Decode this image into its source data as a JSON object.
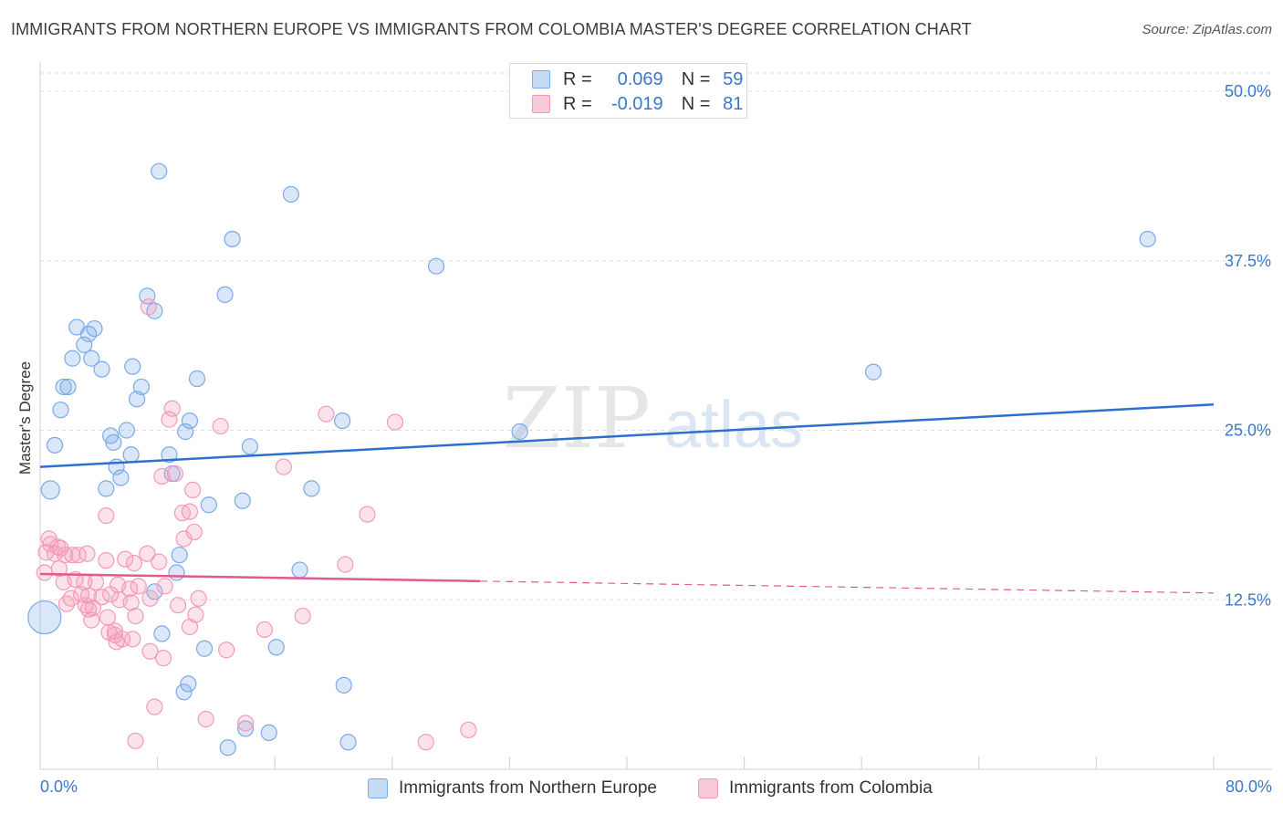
{
  "chart_data": {
    "type": "scatter",
    "title": "IMMIGRANTS FROM NORTHERN EUROPE VS IMMIGRANTS FROM COLOMBIA MASTER'S DEGREE CORRELATION CHART",
    "source": "Source: ZipAtlas.com",
    "xlabel": "",
    "ylabel": "Master's Degree",
    "xlim": [
      0,
      80
    ],
    "ylim": [
      0,
      50
    ],
    "x_tick_labels": {
      "min": "0.0%",
      "max": "80.0%"
    },
    "y_ticks": [
      {
        "value": 12.5,
        "label": "12.5%"
      },
      {
        "value": 25.0,
        "label": "25.0%"
      },
      {
        "value": 37.5,
        "label": "37.5%"
      },
      {
        "value": 50.0,
        "label": "50.0%"
      }
    ],
    "watermark": {
      "part1": "ZIP",
      "part2": "atlas"
    },
    "legend_stats": [
      {
        "r_label": "R =",
        "r_value": "0.069",
        "n_label": "N =",
        "n_value": "59"
      },
      {
        "r_label": "R =",
        "r_value": "-0.019",
        "n_label": "N =",
        "n_value": "81"
      }
    ],
    "series": [
      {
        "name": "Immigrants from Northern Europe",
        "color": "#7aaae8",
        "line_color": "#2d6fcc",
        "trend": {
          "x": [
            0,
            80
          ],
          "y": [
            22.3,
            26.9
          ],
          "dashed_from": null
        },
        "points": [
          [
            8.1,
            44.1
          ],
          [
            17.1,
            42.4
          ],
          [
            13.1,
            39.1
          ],
          [
            75.5,
            39.1
          ],
          [
            27.0,
            37.1
          ],
          [
            7.3,
            34.9
          ],
          [
            12.6,
            35.0
          ],
          [
            7.8,
            33.8
          ],
          [
            2.5,
            32.6
          ],
          [
            3.7,
            32.5
          ],
          [
            3.3,
            32.1
          ],
          [
            3.0,
            31.3
          ],
          [
            2.2,
            30.3
          ],
          [
            3.5,
            30.3
          ],
          [
            4.2,
            29.5
          ],
          [
            6.3,
            29.7
          ],
          [
            56.8,
            29.3
          ],
          [
            10.7,
            28.8
          ],
          [
            1.6,
            28.2
          ],
          [
            1.9,
            28.2
          ],
          [
            6.9,
            28.2
          ],
          [
            6.6,
            27.3
          ],
          [
            1.4,
            26.5
          ],
          [
            10.2,
            25.7
          ],
          [
            20.6,
            25.7
          ],
          [
            5.9,
            25.0
          ],
          [
            9.9,
            24.9
          ],
          [
            32.7,
            24.9
          ],
          [
            4.8,
            24.6
          ],
          [
            5.0,
            24.1
          ],
          [
            1.0,
            23.9
          ],
          [
            14.3,
            23.8
          ],
          [
            6.2,
            23.2
          ],
          [
            8.8,
            23.2
          ],
          [
            5.2,
            22.3
          ],
          [
            9.0,
            21.8
          ],
          [
            5.5,
            21.5
          ],
          [
            0.7,
            20.6
          ],
          [
            4.5,
            20.7
          ],
          [
            18.5,
            20.7
          ],
          [
            13.8,
            19.8
          ],
          [
            11.5,
            19.5
          ],
          [
            9.5,
            15.8
          ],
          [
            17.7,
            14.7
          ],
          [
            9.3,
            14.5
          ],
          [
            7.8,
            13.1
          ],
          [
            8.3,
            10.0
          ],
          [
            0.3,
            11.2
          ],
          [
            11.2,
            8.9
          ],
          [
            16.1,
            9.0
          ],
          [
            10.1,
            6.3
          ],
          [
            20.7,
            6.2
          ],
          [
            9.8,
            5.7
          ],
          [
            14.0,
            3.0
          ],
          [
            15.6,
            2.7
          ],
          [
            21.0,
            2.0
          ],
          [
            12.8,
            1.6
          ]
        ]
      },
      {
        "name": "Immigrants from Colombia",
        "color": "#f49ab8",
        "line_color": "#e0598f",
        "trend": {
          "x": [
            0,
            80
          ],
          "y": [
            14.4,
            13.0
          ],
          "dashed_from": 30
        },
        "points": [
          [
            7.4,
            34.1
          ],
          [
            19.5,
            26.2
          ],
          [
            24.2,
            25.6
          ],
          [
            9.0,
            26.6
          ],
          [
            8.8,
            25.8
          ],
          [
            12.3,
            25.3
          ],
          [
            16.6,
            22.3
          ],
          [
            8.3,
            21.6
          ],
          [
            9.2,
            21.8
          ],
          [
            10.4,
            20.6
          ],
          [
            4.5,
            18.7
          ],
          [
            9.7,
            18.9
          ],
          [
            10.2,
            19.0
          ],
          [
            22.3,
            18.8
          ],
          [
            10.5,
            17.5
          ],
          [
            0.6,
            17.0
          ],
          [
            0.7,
            16.6
          ],
          [
            1.2,
            16.4
          ],
          [
            1.4,
            16.3
          ],
          [
            0.4,
            16.0
          ],
          [
            9.8,
            17.0
          ],
          [
            1.0,
            15.9
          ],
          [
            1.7,
            15.8
          ],
          [
            2.2,
            15.8
          ],
          [
            2.6,
            15.8
          ],
          [
            3.2,
            15.9
          ],
          [
            7.3,
            15.9
          ],
          [
            4.5,
            15.4
          ],
          [
            5.8,
            15.5
          ],
          [
            6.4,
            15.2
          ],
          [
            8.1,
            15.3
          ],
          [
            20.8,
            15.1
          ],
          [
            0.3,
            14.5
          ],
          [
            1.3,
            14.8
          ],
          [
            1.6,
            13.8
          ],
          [
            2.4,
            14.0
          ],
          [
            3.0,
            13.8
          ],
          [
            3.8,
            13.8
          ],
          [
            5.3,
            13.6
          ],
          [
            6.1,
            13.3
          ],
          [
            6.7,
            13.5
          ],
          [
            2.8,
            12.9
          ],
          [
            4.2,
            12.7
          ],
          [
            5.4,
            12.5
          ],
          [
            3.3,
            12.8
          ],
          [
            4.8,
            12.9
          ],
          [
            7.5,
            12.6
          ],
          [
            8.5,
            13.5
          ],
          [
            10.8,
            12.6
          ],
          [
            1.8,
            12.2
          ],
          [
            2.1,
            12.6
          ],
          [
            3.1,
            12.1
          ],
          [
            6.2,
            12.3
          ],
          [
            9.4,
            12.1
          ],
          [
            3.3,
            11.8
          ],
          [
            3.6,
            11.9
          ],
          [
            4.6,
            11.2
          ],
          [
            10.6,
            11.4
          ],
          [
            17.9,
            11.3
          ],
          [
            3.5,
            11.0
          ],
          [
            6.5,
            11.3
          ],
          [
            10.2,
            10.5
          ],
          [
            15.3,
            10.3
          ],
          [
            4.7,
            10.1
          ],
          [
            5.1,
            10.2
          ],
          [
            5.1,
            9.9
          ],
          [
            5.6,
            9.6
          ],
          [
            6.3,
            9.6
          ],
          [
            5.2,
            9.4
          ],
          [
            7.5,
            8.7
          ],
          [
            12.7,
            8.8
          ],
          [
            8.4,
            8.2
          ],
          [
            7.8,
            4.6
          ],
          [
            11.3,
            3.7
          ],
          [
            14.0,
            3.4
          ],
          [
            29.2,
            2.9
          ],
          [
            6.5,
            2.1
          ],
          [
            26.3,
            2.0
          ]
        ]
      }
    ]
  }
}
